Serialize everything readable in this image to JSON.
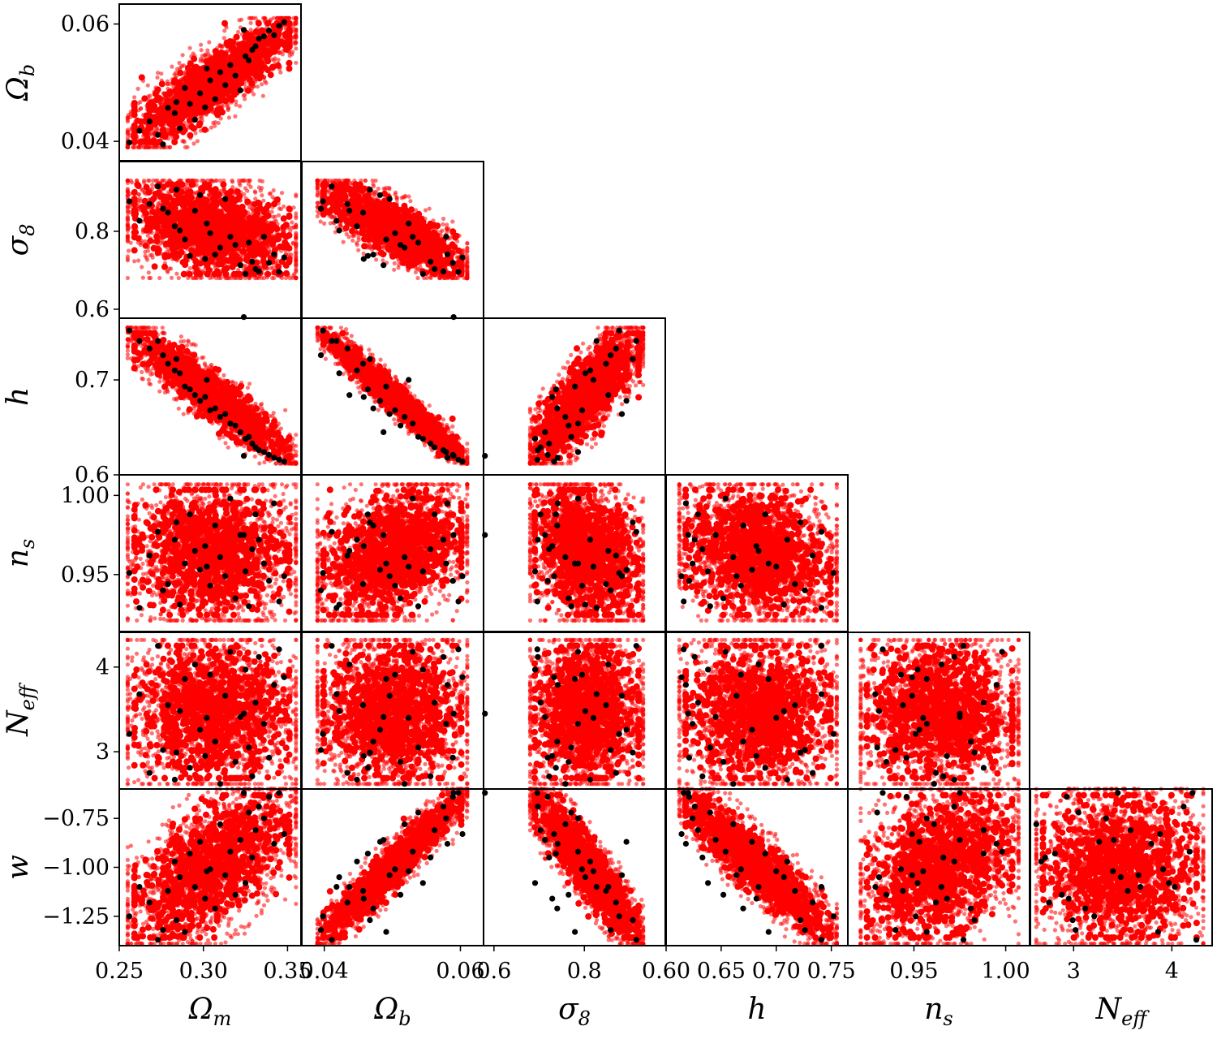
{
  "chart_data": {
    "type": "scatter",
    "title": "",
    "parameters": [
      {
        "key": "Om",
        "label": "Ω",
        "sub": "m",
        "range": [
          0.25,
          0.358
        ]
      },
      {
        "key": "Ob",
        "label": "Ω",
        "sub": "b",
        "range": [
          0.0367,
          0.0634
        ]
      },
      {
        "key": "s8",
        "label": "σ",
        "sub": "8",
        "range": [
          0.577,
          0.979
        ]
      },
      {
        "key": "h",
        "label": "h",
        "sub": "",
        "range": [
          0.6,
          0.765
        ]
      },
      {
        "key": "ns",
        "label": "n",
        "sub": "s",
        "range": [
          0.914,
          1.013
        ]
      },
      {
        "key": "Neff",
        "label": "N",
        "sub": "eff",
        "range": [
          2.56,
          4.41
        ]
      },
      {
        "key": "w",
        "label": "w",
        "sub": "",
        "range": [
          -1.4,
          -0.6
        ]
      }
    ],
    "ticks": {
      "Om": [
        [
          "0.25",
          0.25
        ],
        [
          "0.30",
          0.3
        ],
        [
          "0.35",
          0.35
        ]
      ],
      "Ob": [
        [
          "0.04",
          0.04
        ],
        [
          "0.06",
          0.06
        ]
      ],
      "s8": [
        [
          "0.6",
          0.6
        ],
        [
          "0.8",
          0.8
        ]
      ],
      "h": [
        [
          "0.60",
          0.6
        ],
        [
          "0.65",
          0.65
        ],
        [
          "0.70",
          0.7
        ],
        [
          "0.75",
          0.75
        ]
      ],
      "ns": [
        [
          "0.95",
          0.95
        ],
        [
          "1.00",
          1.0
        ]
      ],
      "Neff": [
        [
          "3",
          3
        ],
        [
          "4",
          4
        ]
      ],
      "w": [
        [
          "−0.75",
          -0.75
        ],
        [
          "−1.00",
          -1.0
        ],
        [
          "−1.25",
          -1.25
        ]
      ]
    },
    "y_ticks": {
      "Ob": [
        [
          "0.06",
          0.06
        ],
        [
          "0.04",
          0.04
        ]
      ],
      "s8": [
        [
          "0.8",
          0.8
        ],
        [
          "0.6",
          0.6
        ]
      ],
      "h": [
        [
          "0.7",
          0.7
        ],
        [
          "0.6",
          0.6
        ]
      ],
      "ns": [
        [
          "1.00",
          1.0
        ],
        [
          "0.95",
          0.95
        ]
      ],
      "Neff": [
        [
          "4",
          4
        ],
        [
          "3",
          3
        ]
      ],
      "w": [
        [
          "−0.75",
          -0.75
        ],
        [
          "−1.00",
          -1.0
        ],
        [
          "−1.25",
          -1.25
        ]
      ]
    },
    "prior_samples": {
      "color": "#ff0000",
      "bounds": {
        "Om": [
          0.255,
          0.355
        ],
        "Ob": [
          0.039,
          0.061
        ],
        "s8": [
          0.68,
          0.93
        ],
        "h": [
          0.612,
          0.755
        ],
        "ns": [
          0.921,
          1.007
        ],
        "Neff": [
          2.62,
          4.32
        ],
        "w": [
          -1.39,
          -0.6
        ]
      }
    },
    "training_points": {
      "color": "#000000",
      "values": [
        {
          "Om": 0.256,
          "Ob": 0.0398,
          "s8": 0.877,
          "h": 0.752,
          "ns": 0.951,
          "Neff": 3.21,
          "w": -1.25
        },
        {
          "Om": 0.262,
          "Ob": 0.0418,
          "s8": 0.827,
          "h": 0.741,
          "ns": 0.929,
          "Neff": 3.68,
          "w": -1.1
        },
        {
          "Om": 0.268,
          "Ob": 0.0434,
          "s8": 0.87,
          "h": 0.733,
          "ns": 0.962,
          "Neff": 2.75,
          "w": -1.18
        },
        {
          "Om": 0.273,
          "Ob": 0.0411,
          "s8": 0.915,
          "h": 0.741,
          "ns": 0.977,
          "Neff": 4.25,
          "w": -1.37
        },
        {
          "Om": 0.276,
          "Ob": 0.0395,
          "s8": 0.858,
          "h": 0.726,
          "ns": 0.94,
          "Neff": 3.02,
          "w": -1.32
        },
        {
          "Om": 0.279,
          "Ob": 0.0457,
          "s8": 0.848,
          "h": 0.717,
          "ns": 0.944,
          "Neff": 3.55,
          "w": -1.12
        },
        {
          "Om": 0.283,
          "Ob": 0.0448,
          "s8": 0.813,
          "h": 0.71,
          "ns": 0.972,
          "Neff": 2.67,
          "w": -0.97
        },
        {
          "Om": 0.286,
          "Ob": 0.0422,
          "s8": 0.802,
          "h": 0.707,
          "ns": 0.931,
          "Neff": 3.48,
          "w": -1.05
        },
        {
          "Om": 0.289,
          "Ob": 0.0491,
          "s8": 0.779,
          "h": 0.693,
          "ns": 0.957,
          "Neff": 3.86,
          "w": -1.33
        },
        {
          "Om": 0.292,
          "Ob": 0.0464,
          "s8": 0.737,
          "h": 0.69,
          "ns": 0.988,
          "Neff": 2.81,
          "w": -0.93
        },
        {
          "Om": 0.295,
          "Ob": 0.0437,
          "s8": 0.853,
          "h": 0.684,
          "ns": 0.965,
          "Neff": 4.03,
          "w": -1.1
        },
        {
          "Om": 0.298,
          "Ob": 0.0482,
          "s8": 0.893,
          "h": 0.678,
          "ns": 0.953,
          "Neff": 3.26,
          "w": -0.87
        },
        {
          "Om": 0.301,
          "Ob": 0.0458,
          "s8": 0.729,
          "h": 0.682,
          "ns": 0.968,
          "Neff": 2.95,
          "w": -1.16
        },
        {
          "Om": 0.304,
          "Ob": 0.0504,
          "s8": 0.795,
          "h": 0.668,
          "ns": 0.943,
          "Neff": 3.91,
          "w": -1.01
        },
        {
          "Om": 0.307,
          "Ob": 0.0472,
          "s8": 0.74,
          "h": 0.67,
          "ns": 0.981,
          "Neff": 3.12,
          "w": -1.21
        },
        {
          "Om": 0.31,
          "Ob": 0.0518,
          "s8": 0.758,
          "h": 0.661,
          "ns": 0.961,
          "Neff": 2.62,
          "w": -0.78
        },
        {
          "Om": 0.313,
          "Ob": 0.0496,
          "s8": 0.883,
          "h": 0.664,
          "ns": 0.949,
          "Neff": 3.66,
          "w": -1.04
        },
        {
          "Om": 0.316,
          "Ob": 0.053,
          "s8": 0.786,
          "h": 0.654,
          "ns": 0.998,
          "Neff": 4.18,
          "w": -0.92
        },
        {
          "Om": 0.319,
          "Ob": 0.0512,
          "s8": 0.765,
          "h": 0.652,
          "ns": 0.935,
          "Neff": 2.88,
          "w": -1.14
        },
        {
          "Om": 0.322,
          "Ob": 0.0487,
          "s8": 0.713,
          "h": 0.645,
          "ns": 0.975,
          "Neff": 3.41,
          "w": -0.86
        },
        {
          "Om": 0.325,
          "Ob": 0.0545,
          "s8": 0.691,
          "h": 0.638,
          "ns": 0.952,
          "Neff": 3.97,
          "w": -1.08
        },
        {
          "Om": 0.327,
          "Ob": 0.0538,
          "s8": 0.771,
          "h": 0.64,
          "ns": 0.93,
          "Neff": 3.05,
          "w": -0.72
        },
        {
          "Om": 0.329,
          "Ob": 0.0556,
          "s8": 0.722,
          "h": 0.633,
          "ns": 0.966,
          "Neff": 2.71,
          "w": -0.95
        },
        {
          "Om": 0.331,
          "Ob": 0.0562,
          "s8": 0.703,
          "h": 0.629,
          "ns": 0.988,
          "Neff": 3.58,
          "w": -0.81
        },
        {
          "Om": 0.333,
          "Ob": 0.0575,
          "s8": 0.697,
          "h": 0.626,
          "ns": 0.972,
          "Neff": 4.12,
          "w": -0.69
        },
        {
          "Om": 0.336,
          "Ob": 0.0579,
          "s8": 0.786,
          "h": 0.624,
          "ns": 0.957,
          "Neff": 3.33,
          "w": -0.75
        },
        {
          "Om": 0.339,
          "Ob": 0.0589,
          "s8": 0.719,
          "h": 0.621,
          "ns": 0.946,
          "Neff": 2.93,
          "w": -0.64
        },
        {
          "Om": 0.342,
          "Ob": 0.0581,
          "s8": 0.741,
          "h": 0.618,
          "ns": 0.995,
          "Neff": 3.79,
          "w": -0.88
        },
        {
          "Om": 0.345,
          "Ob": 0.0597,
          "s8": 0.696,
          "h": 0.616,
          "ns": 0.933,
          "Neff": 4.21,
          "w": -0.62
        },
        {
          "Om": 0.348,
          "Ob": 0.0603,
          "s8": 0.733,
          "h": 0.614,
          "ns": 0.949,
          "Neff": 3.88,
          "w": -0.83
        },
        {
          "Om": 0.302,
          "Ob": 0.0524,
          "s8": 0.82,
          "h": 0.7,
          "ns": 0.955,
          "Neff": 3.4,
          "w": -1.02
        },
        {
          "Om": 0.284,
          "Ob": 0.0467,
          "s8": 0.907,
          "h": 0.722,
          "ns": 0.983,
          "Neff": 2.99,
          "w": -1.27
        },
        {
          "Om": 0.324,
          "Ob": 0.059,
          "s8": 0.58,
          "h": 0.62,
          "ns": 0.975,
          "Neff": 3.45,
          "w": -0.62
        }
      ]
    }
  }
}
